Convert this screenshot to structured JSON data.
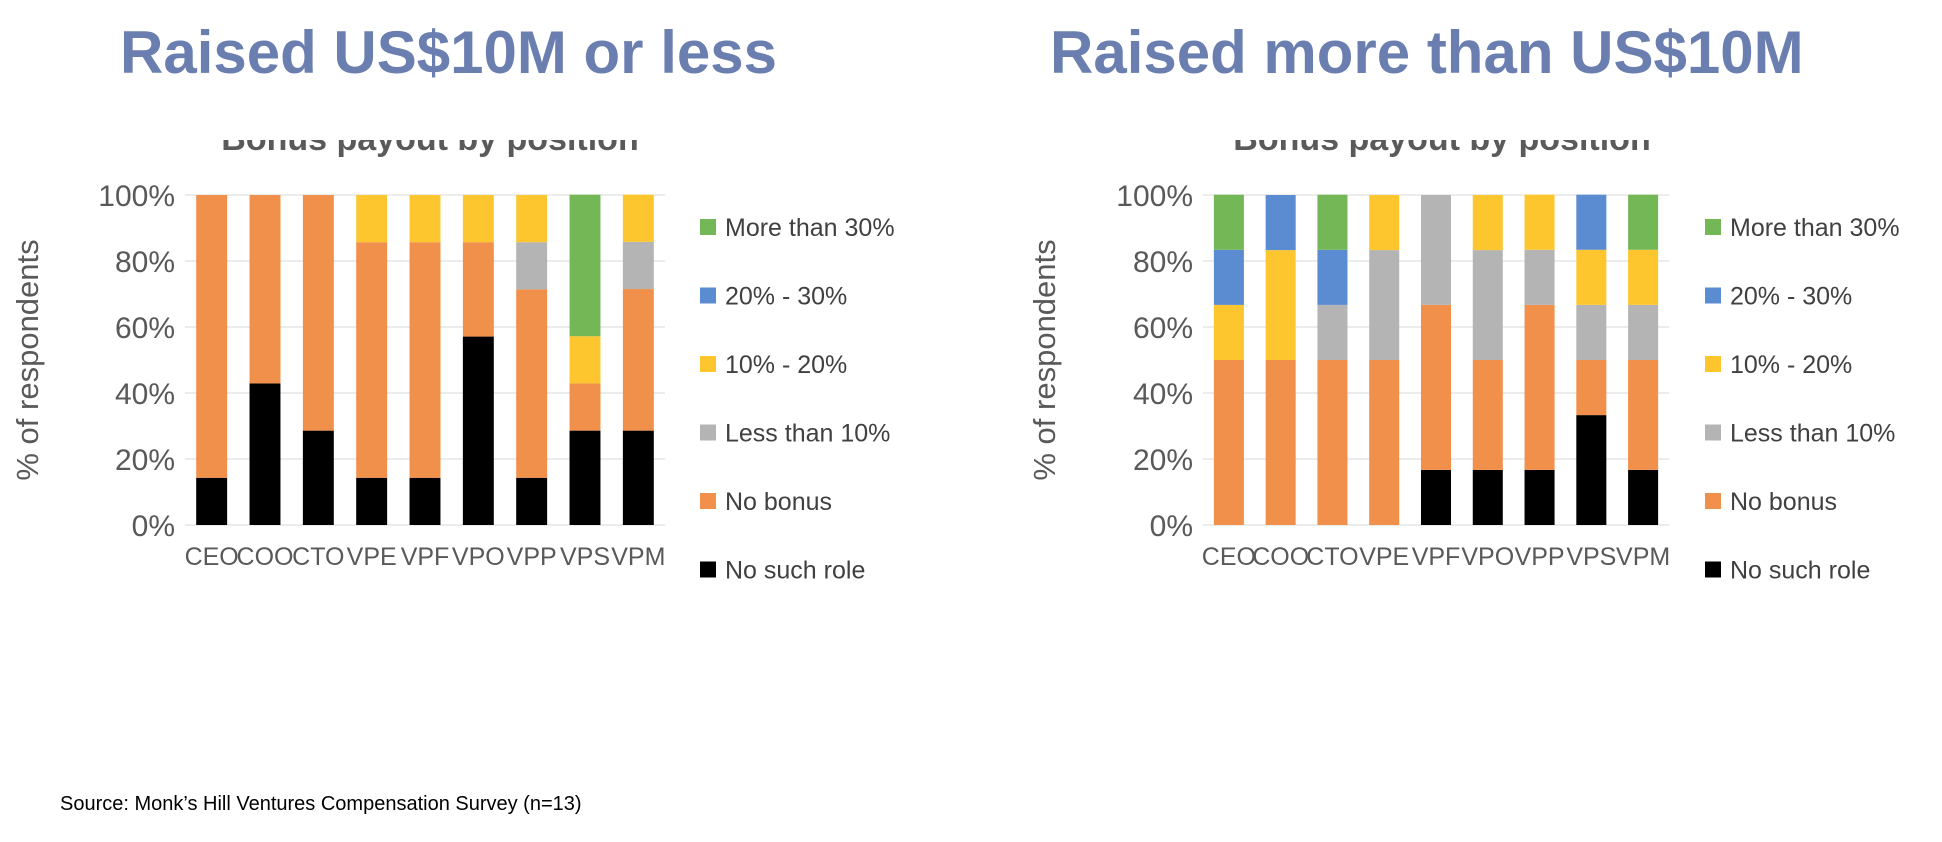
{
  "panels": [
    {
      "heading": "Raised US$10M or less"
    },
    {
      "heading": "Raised more than US$10M"
    }
  ],
  "source": "Source: Monk’s Hill Ventures Compensation Survey (n=13)",
  "colors": {
    "No such role": "#000000",
    "No bonus": "#f0904a",
    "Less than 10%": "#b4b4b4",
    "10% - 20%": "#fdc62e",
    "20% - 30%": "#5b8bd0",
    "More than 30%": "#74b757"
  },
  "chart_data": [
    {
      "type": "bar",
      "stacked": true,
      "title": "Bonus payout by position",
      "xlabel": "",
      "ylabel": "% of respondents",
      "ylim": [
        0,
        100
      ],
      "yticks": [
        "0%",
        "20%",
        "40%",
        "60%",
        "80%",
        "100%"
      ],
      "grid": true,
      "legend_position": "right",
      "categories": [
        "CEO",
        "COO",
        "CTO",
        "VPE",
        "VPF",
        "VPO",
        "VPP",
        "VPS",
        "VPM"
      ],
      "series": [
        {
          "name": "No such role",
          "values": [
            14.3,
            42.9,
            28.6,
            14.3,
            14.3,
            57.1,
            14.3,
            28.6,
            28.6
          ]
        },
        {
          "name": "No bonus",
          "values": [
            85.7,
            57.1,
            71.4,
            71.4,
            71.4,
            28.6,
            57.1,
            14.3,
            42.9
          ]
        },
        {
          "name": "Less than 10%",
          "values": [
            0,
            0,
            0,
            0,
            0,
            0,
            14.3,
            0,
            14.3
          ]
        },
        {
          "name": "10% - 20%",
          "values": [
            0,
            0,
            0,
            14.3,
            14.3,
            14.3,
            14.3,
            14.3,
            14.3
          ]
        },
        {
          "name": "20% - 30%",
          "values": [
            0,
            0,
            0,
            0,
            0,
            0,
            0,
            0,
            0
          ]
        },
        {
          "name": "More than 30%",
          "values": [
            0,
            0,
            0,
            0,
            0,
            0,
            0,
            42.9,
            0
          ]
        }
      ]
    },
    {
      "type": "bar",
      "stacked": true,
      "title": "Bonus payout by position",
      "xlabel": "",
      "ylabel": "% of respondents",
      "ylim": [
        0,
        100
      ],
      "yticks": [
        "0%",
        "20%",
        "40%",
        "60%",
        "80%",
        "100%"
      ],
      "grid": true,
      "legend_position": "right",
      "categories": [
        "CEO",
        "COO",
        "CTO",
        "VPE",
        "VPF",
        "VPO",
        "VPP",
        "VPS",
        "VPM"
      ],
      "series": [
        {
          "name": "No such role",
          "values": [
            0,
            0,
            0,
            0,
            16.7,
            16.7,
            16.7,
            33.3,
            16.7
          ]
        },
        {
          "name": "No bonus",
          "values": [
            50,
            50,
            50,
            50,
            50,
            33.3,
            50,
            16.7,
            33.3
          ]
        },
        {
          "name": "Less than 10%",
          "values": [
            0,
            0,
            16.7,
            33.3,
            33.3,
            33.3,
            16.7,
            16.7,
            16.7
          ]
        },
        {
          "name": "10% - 20%",
          "values": [
            16.7,
            33.3,
            0,
            16.7,
            0,
            16.7,
            16.7,
            16.7,
            16.7
          ]
        },
        {
          "name": "20% - 30%",
          "values": [
            16.7,
            16.7,
            16.7,
            0,
            0,
            0,
            0,
            16.7,
            0
          ]
        },
        {
          "name": "More than 30%",
          "values": [
            16.7,
            0,
            16.7,
            0,
            0,
            0,
            0,
            0,
            16.7
          ]
        }
      ]
    }
  ]
}
